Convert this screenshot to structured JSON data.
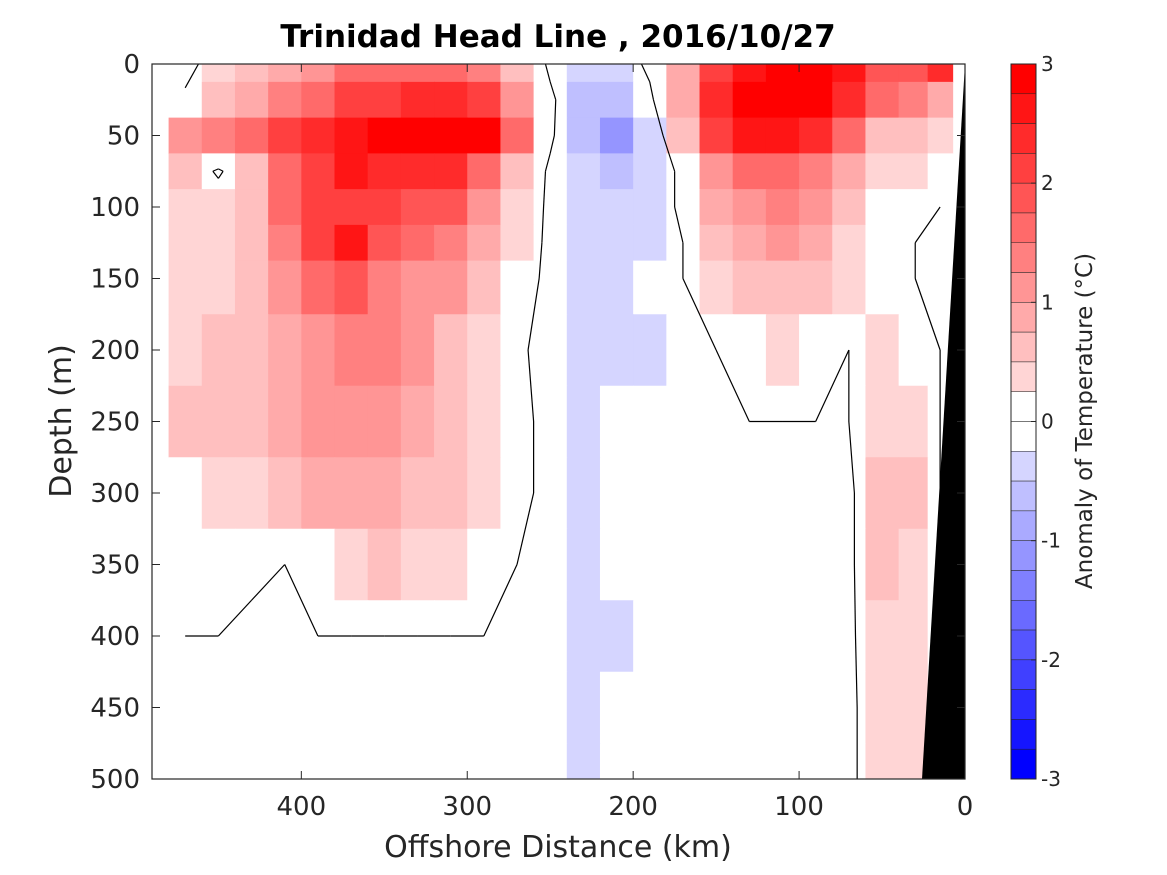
{
  "chart_data": {
    "type": "heatmap",
    "title": "Trinidad Head Line , 2016/10/27",
    "xlabel": "Offshore Distance (km)",
    "ylabel": "Depth (m)",
    "xlim": [
      490,
      0
    ],
    "ylim": [
      0,
      500
    ],
    "x_ticks": [
      400,
      300,
      200,
      100,
      0
    ],
    "y_ticks": [
      0,
      50,
      100,
      150,
      200,
      250,
      300,
      350,
      400,
      450,
      500
    ],
    "colorbar": {
      "label": "Anomaly of Temperature (°C)",
      "range": [
        -3,
        3
      ],
      "ticks": [
        3,
        2,
        1,
        0,
        -1,
        -2,
        -3
      ],
      "step": 0.25,
      "negative_color": "#0000ff",
      "positive_color": "#ff0000"
    },
    "x": [
      470,
      450,
      430,
      410,
      390,
      370,
      350,
      330,
      310,
      290,
      270,
      250,
      230,
      210,
      190,
      170,
      150,
      130,
      110,
      90,
      70,
      50,
      30,
      15
    ],
    "depths": [
      0,
      25,
      50,
      75,
      100,
      125,
      150,
      200,
      250,
      300,
      350,
      400,
      450,
      500
    ],
    "values": [
      [
        -0.2,
        0.3,
        0.6,
        0.9,
        1.2,
        1.5,
        1.6,
        1.6,
        1.5,
        1.3,
        0.6,
        -0.1,
        -0.3,
        -0.3,
        0.1,
        0.8,
        2.2,
        2.6,
        2.9,
        2.9,
        2.6,
        1.8,
        1.9,
        2.4
      ],
      [
        0.1,
        0.5,
        0.9,
        1.3,
        1.7,
        2.0,
        2.2,
        2.3,
        2.3,
        2.1,
        1.2,
        0.1,
        -0.5,
        -0.7,
        -0.1,
        0.8,
        2.3,
        2.9,
        2.9,
        2.8,
        2.4,
        1.6,
        1.3,
        0.8
      ],
      [
        1.2,
        1.4,
        1.5,
        2.0,
        2.4,
        2.7,
        2.9,
        2.9,
        2.8,
        2.8,
        1.6,
        0.1,
        -0.7,
        -1.2,
        -0.4,
        0.6,
        2.0,
        2.6,
        2.6,
        2.3,
        1.5,
        0.6,
        0.6,
        0.3
      ],
      [
        0.5,
        -0.1,
        0.6,
        1.6,
        2.1,
        2.6,
        2.4,
        2.3,
        2.3,
        1.5,
        0.6,
        -0.1,
        -0.4,
        -0.5,
        -0.3,
        0.1,
        1.2,
        1.6,
        1.7,
        1.4,
        0.9,
        0.4,
        0.3,
        0.1
      ],
      [
        0.4,
        0.4,
        0.7,
        1.6,
        2.0,
        2.1,
        2.1,
        1.9,
        1.8,
        1.2,
        0.4,
        -0.1,
        -0.3,
        -0.4,
        -0.3,
        0.1,
        0.8,
        1.2,
        1.3,
        1.1,
        0.7,
        0.2,
        0.1,
        0.0
      ],
      [
        0.3,
        0.4,
        0.6,
        1.4,
        2.2,
        2.5,
        1.9,
        1.6,
        1.3,
        0.8,
        0.3,
        -0.1,
        -0.3,
        -0.3,
        -0.3,
        0.0,
        0.6,
        0.9,
        1.0,
        0.8,
        0.4,
        0.1,
        0.0,
        0.0
      ],
      [
        0.4,
        0.4,
        0.6,
        1.1,
        1.6,
        1.9,
        1.4,
        1.2,
        1.0,
        0.6,
        0.2,
        -0.1,
        -0.3,
        -0.3,
        -0.2,
        0.0,
        0.3,
        0.6,
        0.7,
        0.6,
        0.3,
        0.1,
        0.0,
        0.0
      ],
      [
        0.4,
        0.5,
        0.7,
        0.9,
        1.2,
        1.4,
        1.3,
        1.0,
        0.7,
        0.4,
        0.1,
        -0.2,
        -0.4,
        -0.3,
        -0.3,
        -0.2,
        0.0,
        0.2,
        0.3,
        0.2,
        0.0,
        0.3,
        0.2,
        0.0
      ],
      [
        0.5,
        0.6,
        0.7,
        0.9,
        1.1,
        1.2,
        1.0,
        0.9,
        0.6,
        0.3,
        0.1,
        -0.1,
        -0.3,
        -0.2,
        -0.2,
        -0.1,
        -0.1,
        0.0,
        0.0,
        0.0,
        0.0,
        0.4,
        0.4,
        0.0
      ],
      [
        0.2,
        0.3,
        0.4,
        0.6,
        0.8,
        0.9,
        0.8,
        0.7,
        0.5,
        0.3,
        0.1,
        -0.1,
        -0.3,
        -0.2,
        -0.2,
        -0.1,
        -0.1,
        0.0,
        -0.1,
        -0.2,
        -0.1,
        0.5,
        0.5,
        0.0
      ],
      [
        0.2,
        0.2,
        0.1,
        0.0,
        0.2,
        0.4,
        0.5,
        0.4,
        0.3,
        0.1,
        0.0,
        -0.1,
        -0.3,
        -0.2,
        -0.2,
        -0.1,
        0.0,
        0.0,
        -0.1,
        -0.2,
        -0.1,
        0.5,
        0.4,
        0.0
      ],
      [
        0.0,
        0.0,
        -0.1,
        -0.1,
        0.0,
        0.0,
        0.0,
        0.0,
        0.0,
        0.0,
        0.0,
        -0.1,
        -0.3,
        -0.3,
        -0.2,
        -0.1,
        0.0,
        0.0,
        -0.1,
        -0.2,
        -0.1,
        0.4,
        0.3,
        0.0
      ],
      [
        0.0,
        0.0,
        -0.1,
        -0.1,
        0.0,
        0.0,
        0.0,
        0.0,
        0.0,
        0.0,
        0.0,
        -0.2,
        -0.3,
        -0.2,
        0.0,
        -0.2,
        0.0,
        0.0,
        -0.1,
        -0.2,
        -0.1,
        0.3,
        0.3,
        0.0
      ],
      [
        0.0,
        0.0,
        -0.1,
        -0.2,
        0.0,
        0.0,
        0.0,
        0.0,
        0.0,
        0.0,
        0.0,
        -0.2,
        -0.3,
        -0.2,
        -0.1,
        -0.2,
        0.0,
        0.0,
        -0.1,
        -0.2,
        -0.1,
        0.3,
        0.3,
        0.0
      ]
    ],
    "zero_contour": true,
    "land_mask_color": "#000000"
  }
}
